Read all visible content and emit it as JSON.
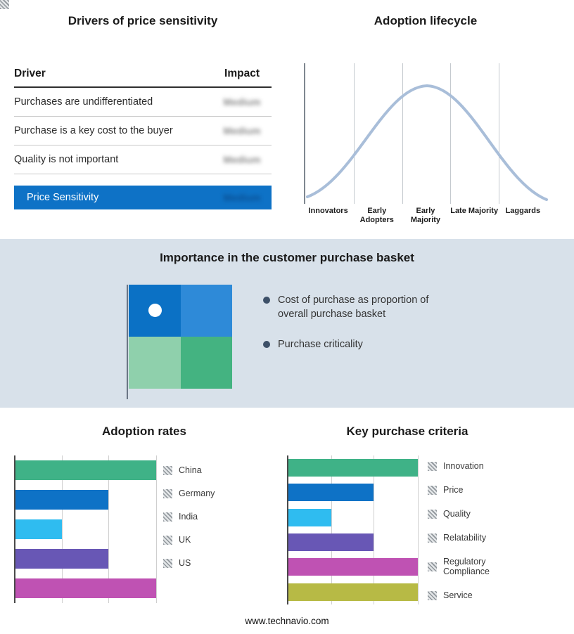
{
  "drivers_table": {
    "title": "Drivers of price sensitivity",
    "col_driver": "Driver",
    "col_impact": "Impact",
    "rows": [
      {
        "driver": "Purchases are undifferentiated",
        "impact": "Medium"
      },
      {
        "driver": "Purchase is a key cost to the buyer",
        "impact": "Medium"
      },
      {
        "driver": "Quality is not important",
        "impact": "Medium"
      }
    ],
    "highlight_row": {
      "driver": "Price Sensitivity",
      "impact": "Medium"
    },
    "highlight_color": "#0e72c6"
  },
  "adoption_lifecycle": {
    "title": "Adoption lifecycle",
    "stages": [
      "Innovators",
      "Early Adopters",
      "Early Majority",
      "Late Majority",
      "Laggards"
    ],
    "curve_color": "#a9bed9"
  },
  "purchase_basket": {
    "title": "Importance in the customer purchase basket",
    "bullets": [
      "Cost of purchase as proportion of overall purchase basket",
      "Purchase criticality"
    ],
    "quadrant_colors": [
      "#0b71c5",
      "#2e8ad8",
      "#8fd0ac",
      "#44b381"
    ],
    "band_color": "#d8e1ea"
  },
  "footer": {
    "url": "www.technavio.com"
  },
  "chart_data": [
    {
      "type": "bar",
      "orientation": "horizontal",
      "title": "Adoption rates",
      "categories": [
        "China",
        "Germany",
        "India",
        "UK",
        "US"
      ],
      "values": [
        100,
        66,
        33,
        66,
        100
      ],
      "colors": [
        "#3fb287",
        "#0e72c6",
        "#2fbcf0",
        "#6857b5",
        "#bf52b3"
      ],
      "xlim": [
        0,
        100
      ],
      "gridlines": [
        33,
        66,
        100
      ],
      "legend_position": "right"
    },
    {
      "type": "bar",
      "orientation": "horizontal",
      "title": "Key purchase criteria",
      "categories": [
        "Innovation",
        "Price",
        "Quality",
        "Relatability",
        "Regulatory Compliance",
        "Service"
      ],
      "values": [
        100,
        66,
        33,
        66,
        100,
        100
      ],
      "colors": [
        "#3fb287",
        "#0e72c6",
        "#2fbcf0",
        "#6857b5",
        "#bf52b3",
        "#b7ba45"
      ],
      "xlim": [
        0,
        100
      ],
      "gridlines": [
        33,
        66,
        100
      ],
      "legend_position": "right"
    }
  ]
}
